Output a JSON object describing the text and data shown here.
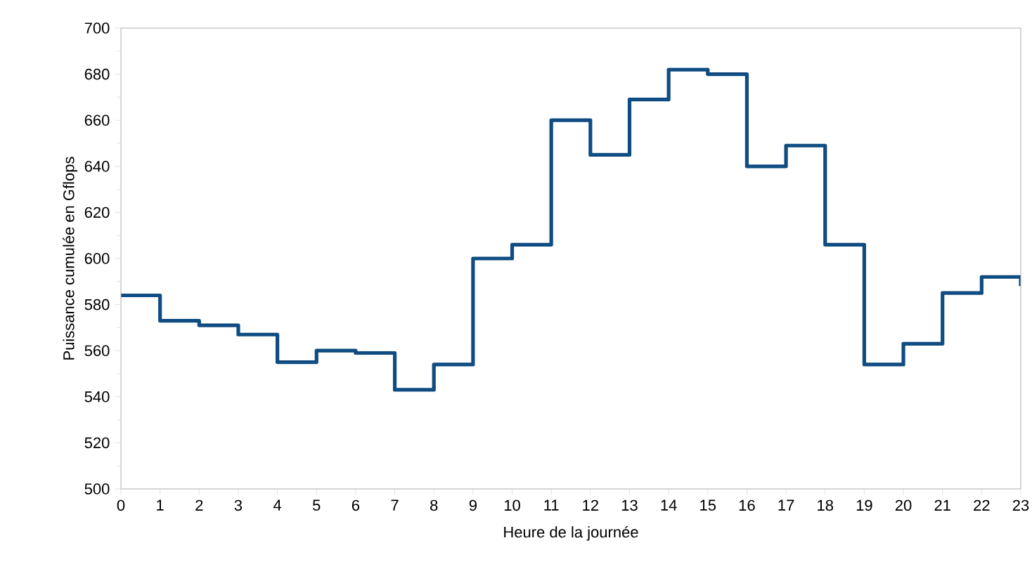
{
  "chart_data": {
    "type": "step",
    "xlabel": "Heure de la journée",
    "ylabel": "Puissance cumulée en Gflops",
    "x": [
      0,
      1,
      2,
      3,
      4,
      5,
      6,
      7,
      8,
      9,
      10,
      11,
      12,
      13,
      14,
      15,
      16,
      17,
      18,
      19,
      20,
      21,
      22,
      23
    ],
    "series": [
      {
        "color": "#0f4c81",
        "values": [
          584,
          573,
          571,
          567,
          555,
          560,
          559,
          543,
          554,
          600,
          606,
          660,
          645,
          669,
          682,
          680,
          640,
          649,
          606,
          554,
          563,
          585,
          592,
          588
        ]
      }
    ],
    "xlim": [
      0,
      23
    ],
    "ylim": [
      500,
      700
    ],
    "xticks": [
      0,
      1,
      2,
      3,
      4,
      5,
      6,
      7,
      8,
      9,
      10,
      11,
      12,
      13,
      14,
      15,
      16,
      17,
      18,
      19,
      20,
      21,
      22,
      23
    ],
    "yticks": [
      500,
      520,
      540,
      560,
      580,
      600,
      620,
      640,
      660,
      680,
      700
    ],
    "grid": false,
    "marker": "none",
    "line_style": "solid"
  }
}
